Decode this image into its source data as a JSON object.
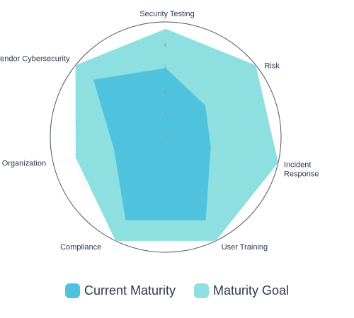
{
  "chart_data": {
    "type": "radar",
    "categories": [
      "Security Testing",
      "Risk",
      "Incident Response",
      "User Training",
      "Compliance",
      "Organization",
      "Vendor Cybersecurity"
    ],
    "ticks": [
      "0",
      "1",
      "2",
      "3",
      "4"
    ],
    "rmax": 5,
    "grid": true,
    "legend_position": "bottom",
    "series": [
      {
        "name": "Current Maturity",
        "values": [
          3,
          2.2,
          2,
          4,
          4,
          2.3,
          4
        ],
        "color": "#4fc3dd"
      },
      {
        "name": "Maturity Goal",
        "values": [
          4.7,
          5,
          5,
          5,
          5,
          4,
          5
        ],
        "color": "#8ddfe0"
      }
    ]
  }
}
